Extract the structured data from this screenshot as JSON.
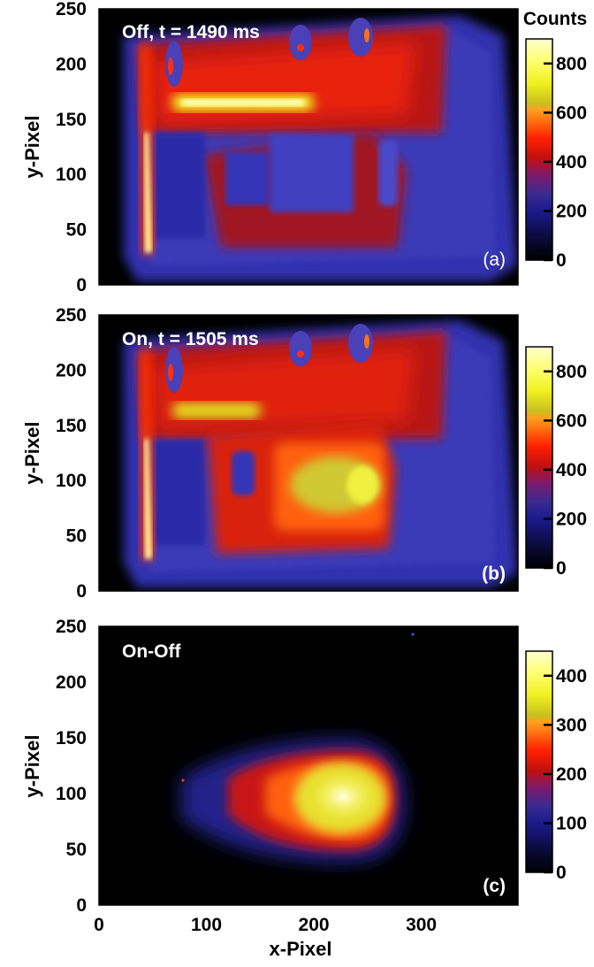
{
  "chart_data": [
    {
      "type": "heatmap",
      "panel": "a",
      "annotation": "Off, t = 1490 ms",
      "panel_label": "(a)",
      "ylabel": "y-Pixel",
      "xlim": [
        0,
        390
      ],
      "ylim": [
        0,
        250
      ],
      "y_ticks": [
        0,
        50,
        100,
        150,
        200,
        250
      ],
      "colorbar": {
        "title": "Counts",
        "range": [
          0,
          900
        ],
        "ticks": [
          0,
          200,
          400,
          600,
          800
        ]
      },
      "features": {
        "vertical_streak": {
          "x": 50,
          "y": [
            30,
            200
          ],
          "peak_counts": 850
        },
        "upper_band": {
          "y": [
            150,
            230
          ],
          "counts": 450
        },
        "hot_line": {
          "x": [
            80,
            160
          ],
          "y": 160,
          "counts": 700
        }
      }
    },
    {
      "type": "heatmap",
      "panel": "b",
      "annotation": "On, t = 1505 ms",
      "panel_label": "(b)",
      "ylabel": "y-Pixel",
      "xlim": [
        0,
        390
      ],
      "ylim": [
        0,
        250
      ],
      "y_ticks": [
        0,
        50,
        100,
        150,
        200,
        250
      ],
      "colorbar": {
        "range": [
          0,
          900
        ],
        "ticks": [
          0,
          200,
          400,
          600,
          800
        ]
      },
      "features": {
        "vertical_streak": {
          "x": 50,
          "y": [
            30,
            200
          ],
          "peak_counts": 850
        },
        "upper_band": {
          "y": [
            150,
            230
          ],
          "counts": 450
        },
        "central_blob": {
          "x": [
            150,
            300
          ],
          "y": [
            65,
            135
          ],
          "peak_counts": 700
        }
      }
    },
    {
      "type": "heatmap",
      "panel": "c",
      "annotation": "On-Off",
      "panel_label": "(c)",
      "ylabel": "y-Pixel",
      "xlabel": "x-Pixel",
      "xlim": [
        0,
        390
      ],
      "ylim": [
        0,
        250
      ],
      "x_ticks": [
        0,
        100,
        200,
        300
      ],
      "y_ticks": [
        0,
        50,
        100,
        150,
        200,
        250
      ],
      "colorbar": {
        "range": [
          0,
          450
        ],
        "ticks": [
          0,
          100,
          200,
          300,
          400
        ]
      },
      "features": {
        "blob": {
          "center": [
            225,
            100
          ],
          "x": [
            90,
            270
          ],
          "y": [
            45,
            155
          ],
          "peak_counts": 420
        }
      }
    }
  ]
}
